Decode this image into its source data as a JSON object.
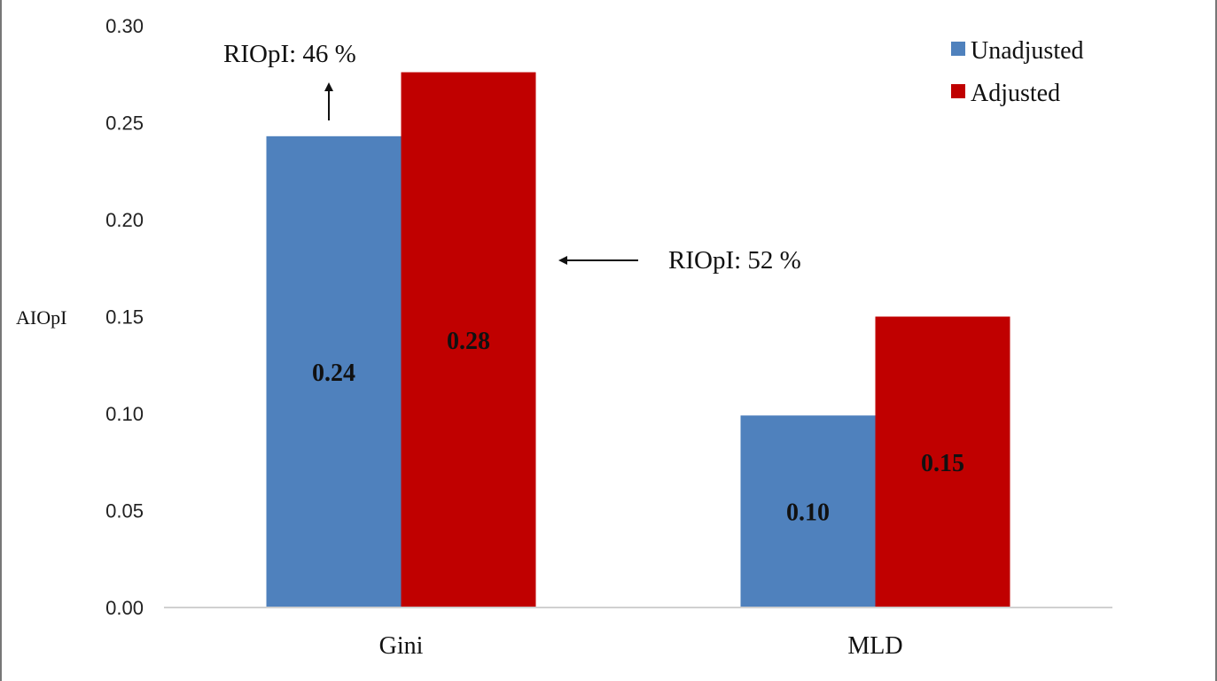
{
  "chart_data": {
    "type": "bar",
    "categories": [
      "Gini",
      "MLD"
    ],
    "series": [
      {
        "name": "Unadjusted",
        "values": [
          0.243,
          0.099
        ],
        "labels": [
          "0.24",
          "0.10"
        ],
        "color": "#4f81bd"
      },
      {
        "name": "Adjusted",
        "values": [
          0.276,
          0.15
        ],
        "labels": [
          "0.28",
          "0.15"
        ],
        "color": "#c00000"
      }
    ],
    "ylabel": "AIOpI",
    "ylim": [
      0,
      0.3
    ],
    "yticks": [
      "0.00",
      "0.05",
      "0.10",
      "0.15",
      "0.20",
      "0.25",
      "0.30"
    ],
    "grid": false,
    "legend": "top-right",
    "annotations": [
      {
        "text": "RIOpI: 46 %",
        "arrow": "up"
      },
      {
        "text": "RIOpI: 52 %",
        "arrow": "left"
      }
    ]
  }
}
